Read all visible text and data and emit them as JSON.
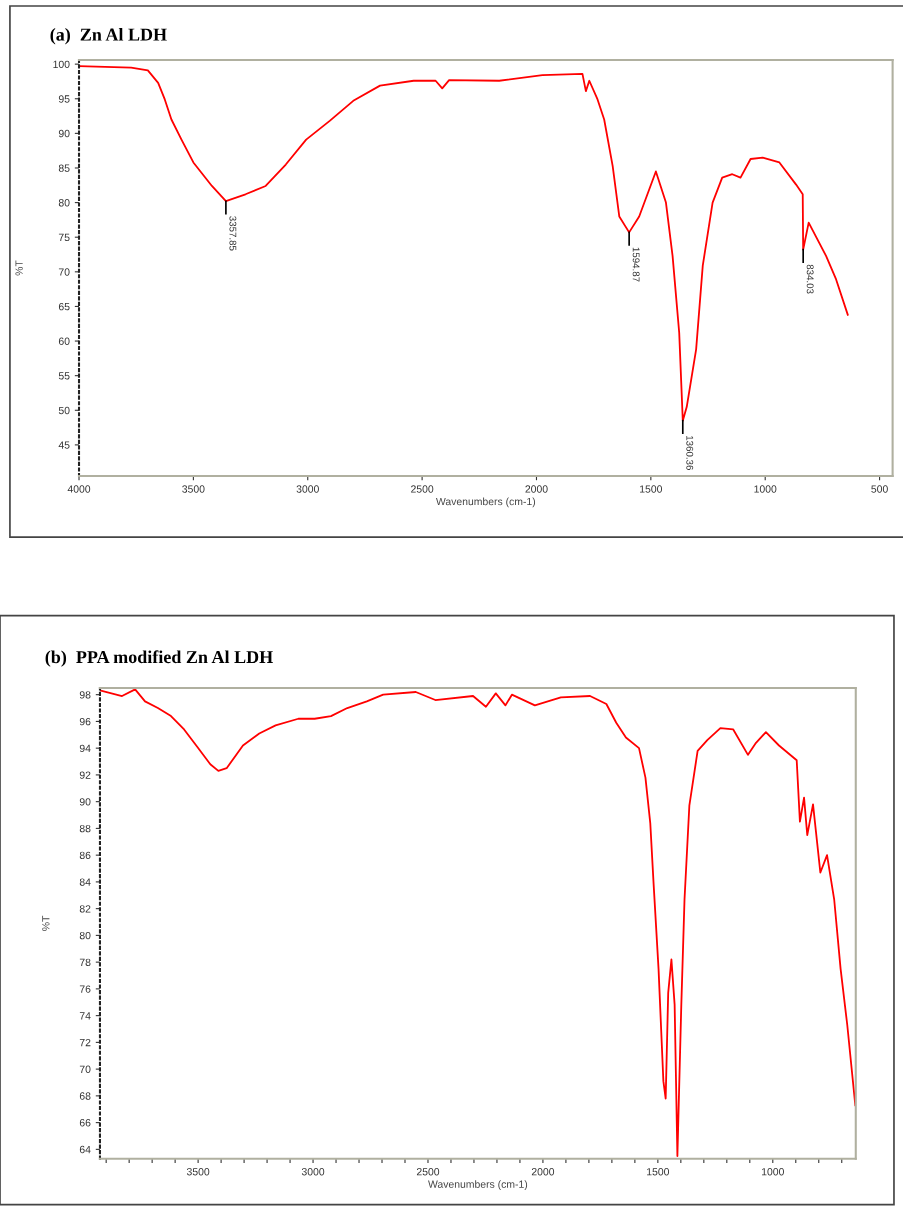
{
  "chart_data": [
    {
      "type": "line",
      "title": "(a)  Zn Al LDH",
      "xlabel": "Wavenumbers (cm-1)",
      "ylabel": "%T",
      "xlim": [
        4000,
        443
      ],
      "ylim": [
        40.5,
        100.6
      ],
      "xticks": [
        4000,
        3500,
        3000,
        2500,
        2000,
        1500,
        1000,
        500
      ],
      "yticks": [
        45,
        50,
        55,
        60,
        65,
        70,
        75,
        80,
        85,
        90,
        95,
        100
      ],
      "grid": false,
      "marker": "none",
      "line_style": "solid",
      "annotations": [
        {
          "text": "3357.85",
          "x": 3357.85,
          "y": 80.2
        },
        {
          "text": "1594.87",
          "x": 1594.87,
          "y": 75.7
        },
        {
          "text": "1360.36",
          "x": 1360.36,
          "y": 48.5
        },
        {
          "text": "834.03",
          "x": 834.03,
          "y": 73.2
        }
      ],
      "series": [
        {
          "color": "#ff0000",
          "x": [
            4000,
            3772,
            3699,
            3654,
            3625,
            3596,
            3552,
            3500,
            3419,
            3357.85,
            3272,
            3184,
            3096,
            3007,
            2904,
            2801,
            2684,
            2537,
            2441,
            2412,
            2382,
            2163,
            1974,
            1799,
            1784,
            1769,
            1733,
            1704,
            1667,
            1638,
            1594.87,
            1551,
            1478,
            1434,
            1405,
            1376,
            1360.36,
            1343,
            1302,
            1273,
            1230,
            1188,
            1144,
            1108,
            1064,
            1011,
            938,
            865,
            836,
            834.03,
            810,
            734,
            690,
            639
          ],
          "values": [
            99.7,
            99.5,
            99.1,
            97.3,
            94.9,
            92.0,
            89.1,
            85.8,
            82.4,
            80.2,
            81.2,
            82.4,
            85.5,
            89.1,
            91.8,
            94.7,
            96.9,
            97.6,
            97.6,
            96.5,
            97.7,
            97.6,
            98.4,
            98.6,
            96.1,
            97.6,
            94.9,
            92.0,
            85.3,
            78.0,
            75.7,
            78.0,
            84.5,
            80.0,
            72.3,
            61.2,
            48.5,
            50.5,
            58.8,
            70.9,
            80.0,
            83.6,
            84.1,
            83.6,
            86.3,
            86.5,
            85.8,
            82.6,
            81.2,
            73.2,
            77.1,
            72.3,
            68.9,
            63.8
          ]
        }
      ]
    },
    {
      "type": "line",
      "title": "(b)  PPA modified Zn Al LDH",
      "xlabel": "Wavenumbers (cm-1)",
      "ylabel": "%T",
      "xlim": [
        3927,
        639
      ],
      "ylim": [
        63.3,
        98.5
      ],
      "xticks": [
        {
          "value": 3900,
          "label": null
        },
        {
          "value": 3800,
          "label": null
        },
        {
          "value": 3700,
          "label": null
        },
        {
          "value": 3600,
          "label": null
        },
        3500,
        {
          "value": 3400,
          "label": null
        },
        {
          "value": 3300,
          "label": null
        },
        {
          "value": 3200,
          "label": null
        },
        {
          "value": 3100,
          "label": null
        },
        3000,
        {
          "value": 2900,
          "label": null
        },
        {
          "value": 2800,
          "label": null
        },
        {
          "value": 2700,
          "label": null
        },
        {
          "value": 2600,
          "label": null
        },
        2500,
        {
          "value": 2400,
          "label": null
        },
        {
          "value": 2300,
          "label": null
        },
        {
          "value": 2200,
          "label": null
        },
        {
          "value": 2100,
          "label": null
        },
        2000,
        {
          "value": 1900,
          "label": null
        },
        {
          "value": 1800,
          "label": null
        },
        {
          "value": 1700,
          "label": null
        },
        {
          "value": 1600,
          "label": null
        },
        1500,
        {
          "value": 1400,
          "label": null
        },
        {
          "value": 1300,
          "label": null
        },
        {
          "value": 1200,
          "label": null
        },
        {
          "value": 1100,
          "label": null
        },
        1000,
        {
          "value": 900,
          "label": null
        },
        {
          "value": 800,
          "label": null
        },
        {
          "value": 700,
          "label": null
        }
      ],
      "yticks": [
        64,
        66,
        68,
        70,
        72,
        74,
        76,
        78,
        80,
        82,
        84,
        86,
        88,
        90,
        92,
        94,
        96,
        98
      ],
      "grid": false,
      "marker": "none",
      "line_style": "solid",
      "series": [
        {
          "color": "#ff0000",
          "x": [
            3923,
            3831,
            3774,
            3731,
            3675,
            3618,
            3561,
            3504,
            3447,
            3412,
            3376,
            3305,
            3234,
            3163,
            3064,
            2993,
            2922,
            2851,
            2766,
            2695,
            2553,
            2468,
            2304,
            2248,
            2205,
            2163,
            2135,
            2035,
            1922,
            1795,
            1724,
            1681,
            1639,
            1582,
            1554,
            1533,
            1519,
            1497,
            1476,
            1466,
            1455,
            1441,
            1427,
            1415,
            1398,
            1384,
            1363,
            1327,
            1285,
            1228,
            1172,
            1108,
            1073,
            1030,
            973,
            896,
            882,
            864,
            850,
            825,
            793,
            764,
            733,
            705,
            676,
            641
          ],
          "values": [
            98.3,
            97.9,
            98.4,
            97.5,
            97.0,
            96.4,
            95.4,
            94.1,
            92.8,
            92.3,
            92.5,
            94.2,
            95.1,
            95.7,
            96.2,
            96.2,
            96.4,
            97.0,
            97.5,
            98.0,
            98.2,
            97.6,
            97.9,
            97.1,
            98.1,
            97.2,
            98.0,
            97.2,
            97.8,
            97.9,
            97.3,
            95.9,
            94.8,
            94.0,
            91.8,
            88.4,
            84.0,
            77.5,
            69.1,
            67.8,
            75.7,
            78.2,
            74.8,
            63.5,
            74.8,
            82.7,
            89.7,
            93.8,
            94.6,
            95.5,
            95.4,
            93.5,
            94.4,
            95.2,
            94.2,
            93.1,
            88.5,
            90.3,
            87.5,
            89.8,
            84.7,
            86.0,
            82.7,
            77.5,
            73.3,
            67.3
          ]
        }
      ]
    }
  ]
}
